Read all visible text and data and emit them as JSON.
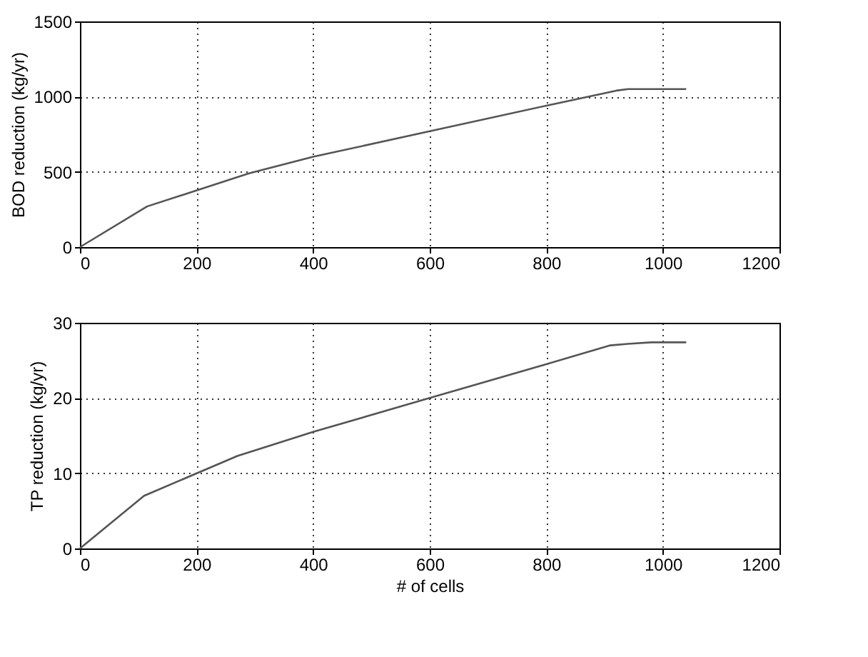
{
  "chart_data": [
    {
      "type": "line",
      "ylabel": "BOD reduction (kg/yr)",
      "x": [
        0,
        115,
        290,
        400,
        600,
        800,
        920,
        940,
        1040
      ],
      "series": [
        {
          "color": "#555555",
          "values": [
            0,
            270,
            490,
            600,
            770,
            940,
            1040,
            1050,
            1050
          ]
        }
      ],
      "xlim": [
        0,
        1200
      ],
      "xticks": [
        0,
        200,
        400,
        600,
        800,
        1000,
        1200
      ],
      "ylim": [
        0,
        1500
      ],
      "yticks": [
        0,
        500,
        1000,
        1500
      ],
      "grid": true,
      "line_style": "solid"
    },
    {
      "type": "line",
      "xlabel": "# of cells",
      "ylabel": "TP reduction (kg/yr)",
      "x": [
        0,
        110,
        270,
        400,
        600,
        800,
        910,
        940,
        980,
        1040
      ],
      "series": [
        {
          "color": "#555555",
          "values": [
            0,
            7,
            12.3,
            15.5,
            20,
            24.5,
            27,
            27.2,
            27.4,
            27.4
          ]
        }
      ],
      "xlim": [
        0,
        1200
      ],
      "xticks": [
        0,
        200,
        400,
        600,
        800,
        1000,
        1200
      ],
      "ylim": [
        0,
        30
      ],
      "yticks": [
        0,
        10,
        20,
        30
      ],
      "grid": true,
      "line_style": "solid"
    }
  ]
}
